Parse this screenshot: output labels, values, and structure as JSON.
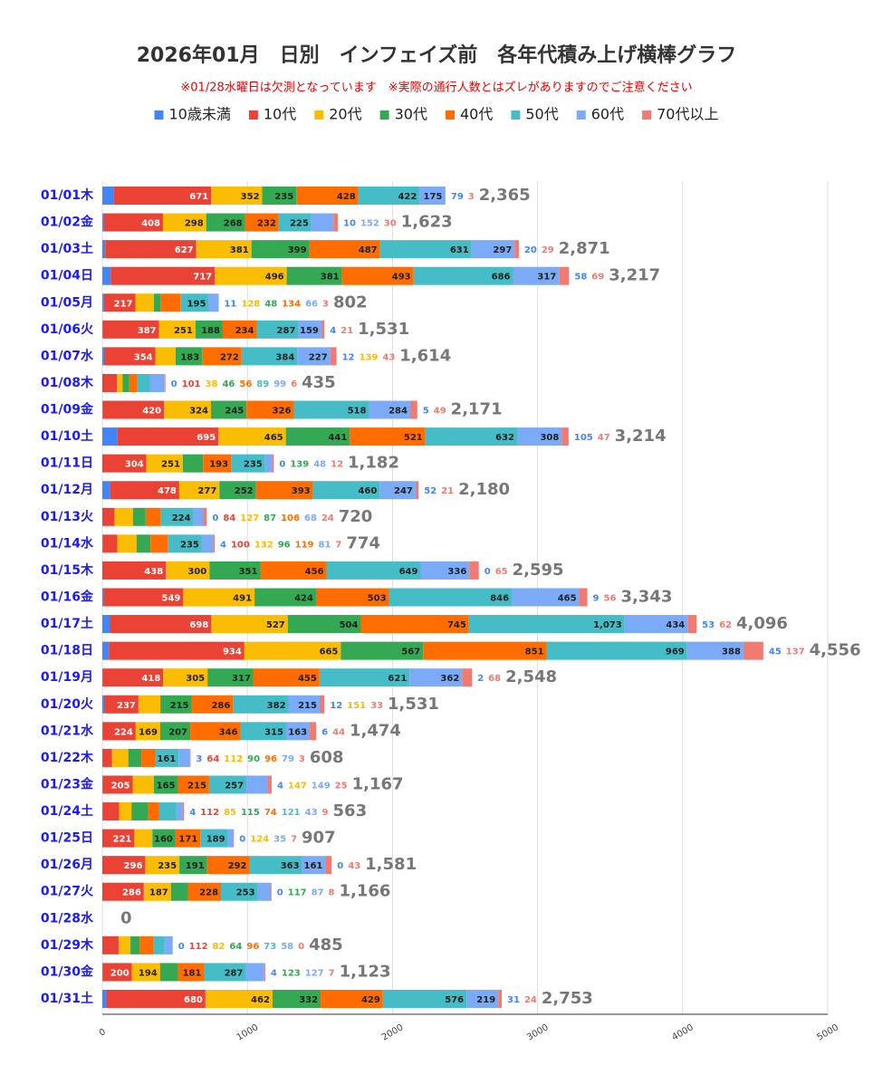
{
  "chart_data": {
    "type": "stacked-barh",
    "title": "2026年01月　日別　インフェイズ前　各年代積み上げ横棒グラフ",
    "subtitle": "※01/28水曜日は欠測となっています　※実際の通行人数とはズレがありますのでご注意ください",
    "categories": [
      "01/01木",
      "01/02金",
      "01/03土",
      "01/04日",
      "01/05月",
      "01/06火",
      "01/07水",
      "01/08木",
      "01/09金",
      "01/10土",
      "01/11日",
      "01/12月",
      "01/13火",
      "01/14水",
      "01/15木",
      "01/16金",
      "01/17土",
      "01/18日",
      "01/19月",
      "01/20火",
      "01/21水",
      "01/22木",
      "01/23金",
      "01/24土",
      "01/25日",
      "01/26月",
      "01/27火",
      "01/28水",
      "01/29木",
      "01/30金",
      "01/31土"
    ],
    "series": [
      {
        "name": "10歳未満",
        "color": "#4285f4",
        "values": [
          79,
          10,
          20,
          58,
          11,
          4,
          12,
          0,
          5,
          105,
          0,
          52,
          0,
          4,
          0,
          9,
          53,
          45,
          2,
          12,
          6,
          3,
          4,
          4,
          0,
          0,
          0,
          0,
          0,
          4,
          31
        ]
      },
      {
        "name": "10代",
        "color": "#ea4335",
        "values": [
          671,
          408,
          627,
          717,
          217,
          387,
          354,
          101,
          420,
          695,
          304,
          478,
          84,
          100,
          438,
          549,
          698,
          934,
          418,
          237,
          224,
          64,
          205,
          112,
          221,
          296,
          286,
          0,
          112,
          200,
          680
        ]
      },
      {
        "name": "20代",
        "color": "#fbbc04",
        "values": [
          352,
          298,
          381,
          496,
          128,
          251,
          139,
          38,
          324,
          465,
          251,
          277,
          127,
          132,
          300,
          491,
          527,
          665,
          305,
          151,
          169,
          112,
          147,
          85,
          124,
          235,
          187,
          0,
          82,
          194,
          462
        ]
      },
      {
        "name": "30代",
        "color": "#34a853",
        "values": [
          235,
          268,
          399,
          381,
          48,
          188,
          183,
          46,
          245,
          441,
          139,
          252,
          87,
          96,
          351,
          424,
          504,
          567,
          317,
          215,
          207,
          90,
          165,
          115,
          160,
          191,
          117,
          0,
          64,
          123,
          332
        ]
      },
      {
        "name": "40代",
        "color": "#ff6d01",
        "values": [
          428,
          232,
          487,
          493,
          134,
          234,
          272,
          56,
          326,
          521,
          193,
          393,
          106,
          119,
          456,
          503,
          745,
          851,
          455,
          286,
          346,
          96,
          215,
          74,
          171,
          292,
          228,
          0,
          96,
          181,
          429
        ]
      },
      {
        "name": "50代",
        "color": "#46bdc6",
        "values": [
          422,
          225,
          631,
          686,
          195,
          287,
          384,
          89,
          518,
          632,
          235,
          460,
          224,
          235,
          649,
          846,
          1073,
          969,
          621,
          382,
          315,
          161,
          257,
          121,
          189,
          363,
          253,
          0,
          73,
          287,
          576
        ],
        "value_labels": [
          "422",
          "225",
          "631",
          "686",
          "195",
          "287",
          "384",
          "89",
          "518",
          "632",
          "235",
          "460",
          "224",
          "235",
          "649",
          "846",
          "1,073",
          "969",
          "621",
          "382",
          "315",
          "161",
          "257",
          "121",
          "189",
          "363",
          "253",
          "0",
          "73",
          "287",
          "576"
        ]
      },
      {
        "name": "60代",
        "color": "#7baaf7",
        "values": [
          175,
          152,
          297,
          317,
          66,
          159,
          227,
          99,
          284,
          308,
          48,
          247,
          68,
          81,
          336,
          465,
          434,
          388,
          362,
          215,
          163,
          79,
          149,
          43,
          35,
          161,
          87,
          0,
          58,
          127,
          219
        ]
      },
      {
        "name": "70代以上",
        "color": "#f07b72",
        "values": [
          3,
          30,
          29,
          69,
          3,
          21,
          43,
          6,
          49,
          47,
          12,
          21,
          24,
          7,
          65,
          56,
          62,
          137,
          68,
          33,
          44,
          3,
          25,
          9,
          7,
          43,
          8,
          0,
          0,
          7,
          24
        ]
      }
    ],
    "totals": {
      "values": [
        2365,
        1623,
        2871,
        3217,
        802,
        1531,
        1614,
        435,
        2171,
        3214,
        1182,
        2180,
        720,
        774,
        2595,
        3343,
        4096,
        4556,
        2548,
        1531,
        1474,
        608,
        1167,
        563,
        907,
        1581,
        1166,
        0,
        485,
        1123,
        2753
      ],
      "value_labels": [
        "2,365",
        "1,623",
        "2,871",
        "3,217",
        "802",
        "1,531",
        "1,614",
        "435",
        "2,171",
        "3,214",
        "1,182",
        "2,180",
        "720",
        "774",
        "2,595",
        "3,343",
        "4,096",
        "4,556",
        "2,548",
        "1,531",
        "1,474",
        "608",
        "1,167",
        "563",
        "907",
        "1,581",
        "1,166",
        "0",
        "485",
        "1,123",
        "2,753"
      ]
    },
    "xlim": [
      0,
      5000
    ],
    "xticks": [
      0,
      1000,
      2000,
      3000,
      4000,
      5000
    ],
    "grid": true,
    "legend": "top"
  }
}
